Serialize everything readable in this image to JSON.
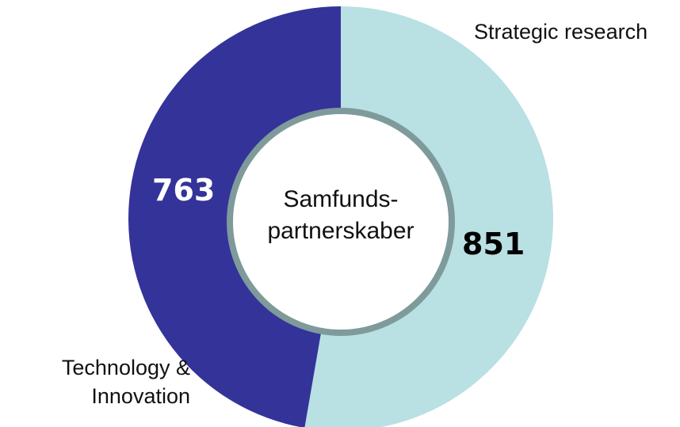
{
  "chart_data": {
    "type": "donut",
    "center_label": "Samfunds-partnerskaber",
    "categories": [
      "Strategic research",
      "Technology & Innovation"
    ],
    "values": [
      851,
      763
    ],
    "colors": [
      "#b9e0e3",
      "#343399"
    ],
    "value_label_colors": [
      "#000000",
      "#ffffff"
    ]
  }
}
